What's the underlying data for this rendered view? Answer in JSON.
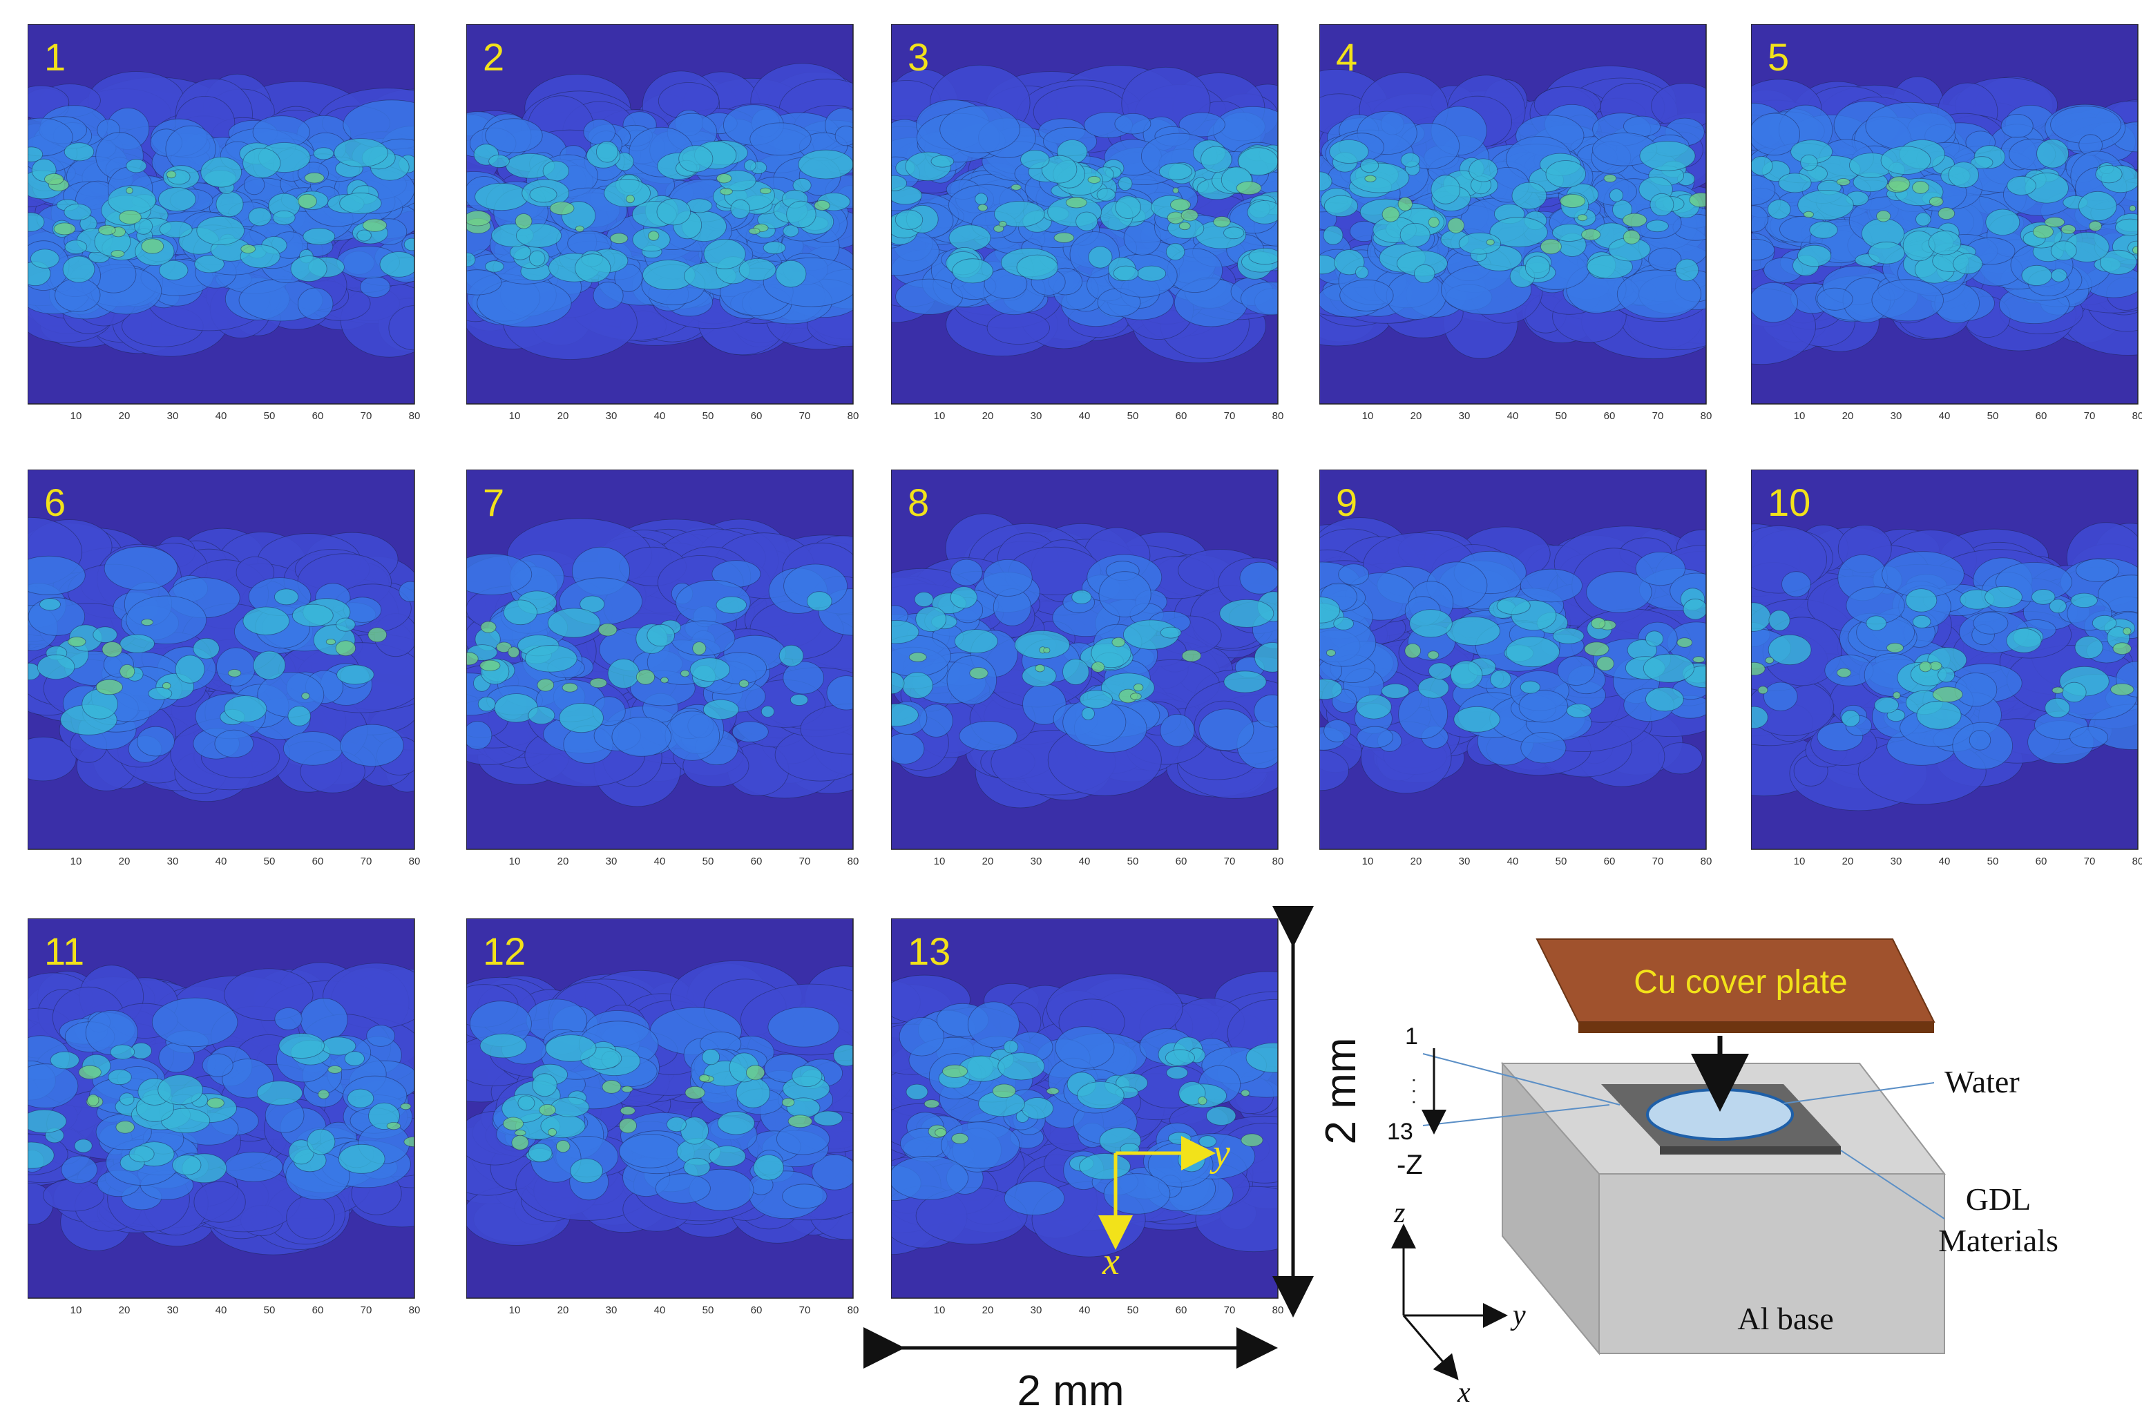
{
  "panels": [
    {
      "label": "1"
    },
    {
      "label": "2"
    },
    {
      "label": "3"
    },
    {
      "label": "4"
    },
    {
      "label": "5"
    },
    {
      "label": "6"
    },
    {
      "label": "7"
    },
    {
      "label": "8"
    },
    {
      "label": "9"
    },
    {
      "label": "10"
    },
    {
      "label": "11"
    },
    {
      "label": "12"
    },
    {
      "label": "13"
    }
  ],
  "axis_ticks": [
    "10",
    "20",
    "30",
    "40",
    "50",
    "60",
    "70",
    "80"
  ],
  "scale": {
    "horizontal_label": "2 mm",
    "vertical_label": "2 mm"
  },
  "axes_inset": {
    "y_label": "y",
    "x_label": "x"
  },
  "schematic": {
    "cover_plate_label": "Cu cover plate",
    "water_label": "Water",
    "gdl_label_line1": "GDL",
    "gdl_label_line2": "Materials",
    "base_label": "Al base",
    "stack_top": "1",
    "stack_dots": "·  ·  ·",
    "stack_bottom": "13",
    "stack_axis": "-Z",
    "coord_z": "z",
    "coord_y": "y",
    "coord_x": "x"
  },
  "colors": {
    "background_map": "#3a2fa8",
    "band_low": "#3f49d0",
    "band_mid": "#3a78e6",
    "band_high": "#3ab7d8",
    "band_peak": "#6fd08a",
    "panel_number": "#f2e21a",
    "cover_plate": "#a0522d",
    "water": "#bcd7ee",
    "al_base": "#c8c8c8",
    "gdl": "#555555"
  }
}
